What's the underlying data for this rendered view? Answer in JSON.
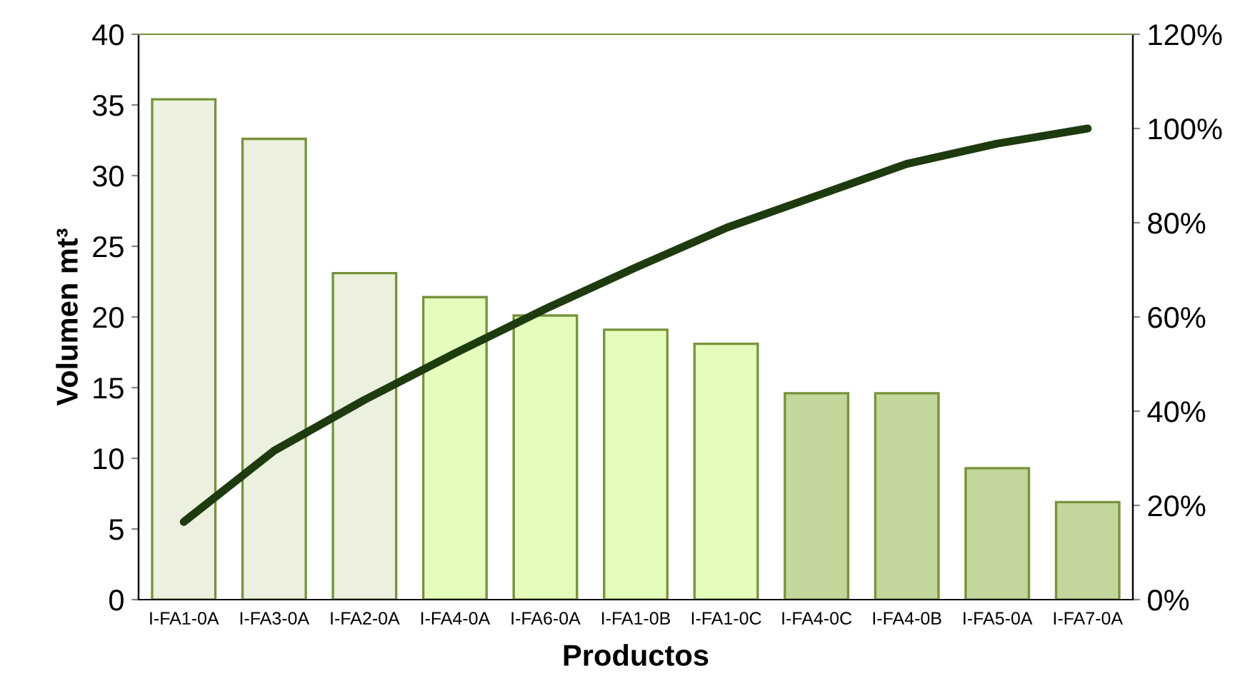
{
  "chart_data": {
    "type": "bar",
    "xlabel": "Productos",
    "ylabel": "Volumen mt³",
    "y2label": null,
    "categories": [
      "I-FA1-0A",
      "I-FA3-0A",
      "I-FA2-0A",
      "I-FA4-0A",
      "I-FA6-0A",
      "I-FA1-0B",
      "I-FA1-0C",
      "I-FA4-0C",
      "I-FA4-0B",
      "I-FA5-0A",
      "I-FA7-0A"
    ],
    "series": [
      {
        "colors": [
          "#ebf1de",
          "#ebf1de",
          "#ebf1de",
          "#e4fcbc",
          "#e4fcbc",
          "#e4fcbc",
          "#e4fcbc",
          "#c3d69b",
          "#c3d69b",
          "#c3d69b",
          "#c3d69b"
        ],
        "color": "#77933c",
        "values": [
          35.4,
          32.6,
          23.1,
          21.4,
          20.1,
          19.1,
          18.1,
          14.6,
          14.6,
          9.3,
          6.9
        ]
      },
      {
        "type": "line",
        "axis": "y2",
        "color": "#1e3b0f",
        "values": [
          16.5,
          31.6,
          42.4,
          52.3,
          61.7,
          70.5,
          78.9,
          85.7,
          92.5,
          96.8,
          100
        ]
      }
    ],
    "ylim": [
      0,
      40
    ],
    "yticks": [
      0,
      5,
      10,
      15,
      20,
      25,
      30,
      35,
      40
    ],
    "y2lim": [
      0,
      120
    ],
    "y2ticks": [
      {
        "value": 0,
        "label": "0%"
      },
      {
        "value": 20,
        "label": "20%"
      },
      {
        "value": 40,
        "label": "40%"
      },
      {
        "value": 60,
        "label": "60%"
      },
      {
        "value": 80,
        "label": "80%"
      },
      {
        "value": 100,
        "label": "100%"
      },
      {
        "value": 120,
        "label": "120%"
      }
    ],
    "grid": false,
    "legend": false,
    "marker": "none",
    "line_style": "solid"
  }
}
